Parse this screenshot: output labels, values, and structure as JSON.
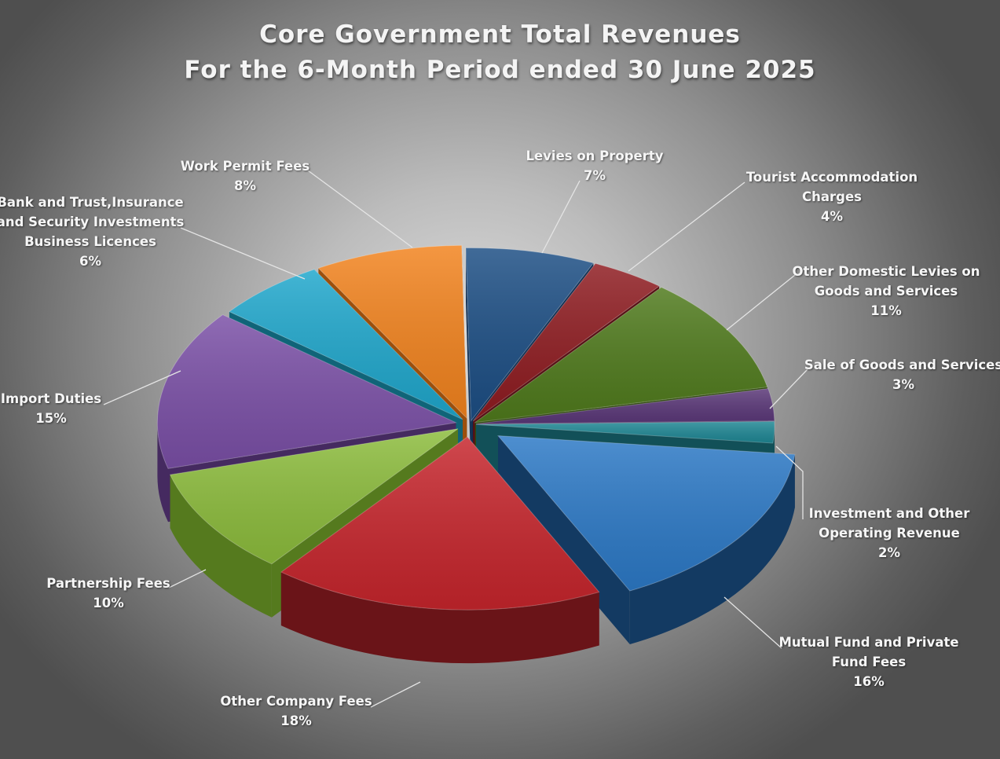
{
  "chart_data": {
    "type": "pie",
    "title": "Core Government Total Revenues",
    "subtitle": "For the 6-Month Period ended 30 June 2025",
    "legend": "none",
    "slices": [
      {
        "name": "Levies on Property",
        "value": 7,
        "value_label": "7%",
        "color": "#1c4e84",
        "side_color": "#0f2e52"
      },
      {
        "name": "Tourist Accommodation Charges",
        "value": 4,
        "value_label": "4%",
        "color": "#8e1b20",
        "side_color": "#561014"
      },
      {
        "name": "Other Domestic Levies on Goods and Services",
        "value": 11,
        "value_label": "11%",
        "color": "#4f7a1c",
        "side_color": "#30490f"
      },
      {
        "name": "Sale of Goods and Services",
        "value": 3,
        "value_label": "3%",
        "color": "#5a3778",
        "side_color": "#351f47"
      },
      {
        "name": "Investment and Other Operating Revenue",
        "value": 2,
        "value_label": "2%",
        "color": "#1f8794",
        "side_color": "#125058"
      },
      {
        "name": "Mutual Fund and Private Fund Fees",
        "value": 16,
        "value_label": "16%",
        "color": "#2c79c6",
        "side_color": "#133a62"
      },
      {
        "name": "Other Company Fees",
        "value": 18,
        "value_label": "18%",
        "color": "#c6252c",
        "side_color": "#6a1418"
      },
      {
        "name": "Partnership Fees",
        "value": 10,
        "value_label": "10%",
        "color": "#8cbc3c",
        "side_color": "#557a1e"
      },
      {
        "name": "Import Duties",
        "value": 15,
        "value_label": "15%",
        "color": "#7a4fa6",
        "side_color": "#452a60"
      },
      {
        "name": "Bank and Trust,Insurance and Security Investments Business Licences",
        "value": 6,
        "value_label": "6%",
        "color": "#1fa7cc",
        "side_color": "#106478"
      },
      {
        "name": "Work Permit Fees",
        "value": 8,
        "value_label": "8%",
        "color": "#f2831e",
        "side_color": "#9c4f0c"
      }
    ]
  },
  "labels": [
    {
      "lines": [
        "Levies on Property"
      ],
      "pct": "7%"
    },
    {
      "lines": [
        "Tourist Accommodation",
        "Charges"
      ],
      "pct": "4%"
    },
    {
      "lines": [
        "Other Domestic Levies on",
        "Goods and Services"
      ],
      "pct": "11%"
    },
    {
      "lines": [
        "Sale of Goods and Services"
      ],
      "pct": "3%"
    },
    {
      "lines": [
        "Investment and Other",
        "Operating Revenue"
      ],
      "pct": "2%"
    },
    {
      "lines": [
        "Mutual Fund and Private",
        "Fund Fees"
      ],
      "pct": "16%"
    },
    {
      "lines": [
        "Other Company Fees"
      ],
      "pct": "18%"
    },
    {
      "lines": [
        "Partnership Fees"
      ],
      "pct": "10%"
    },
    {
      "lines": [
        "Import Duties"
      ],
      "pct": "15%"
    },
    {
      "lines": [
        "Bank and Trust,Insurance",
        "and Security Investments",
        "Business Licences"
      ],
      "pct": "6%"
    },
    {
      "lines": [
        "Work Permit Fees"
      ],
      "pct": "8%"
    }
  ]
}
